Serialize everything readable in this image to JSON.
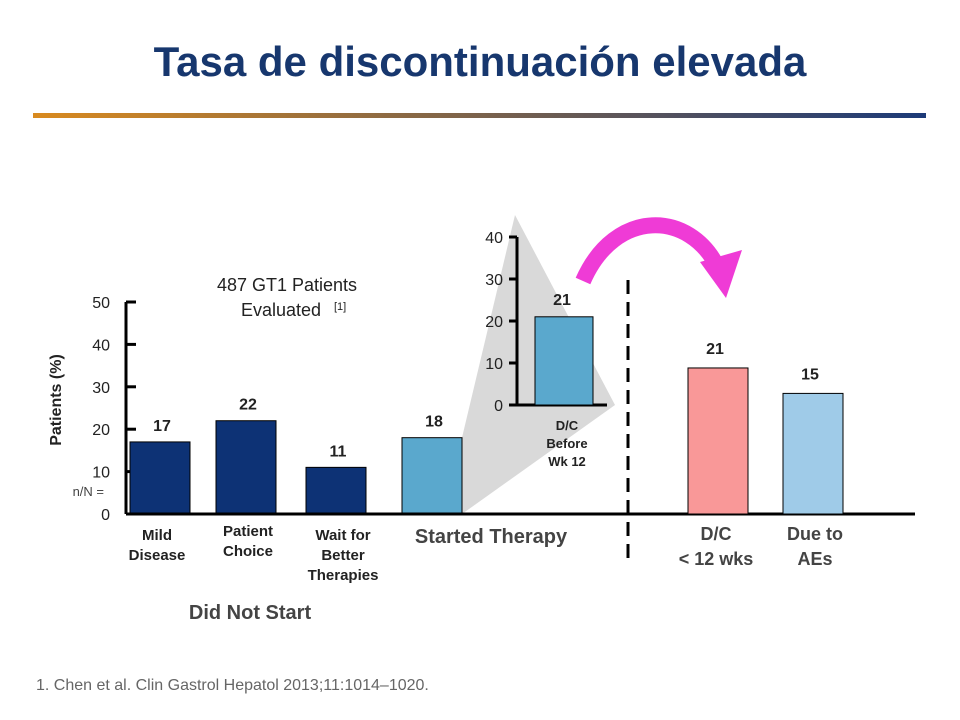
{
  "title": "Tasa de discontinuación elevada",
  "colors": {
    "title": "#17376e",
    "rule_start": "#d98a1f",
    "rule_end": "#1c3a78",
    "dark_blue": "#0d3275",
    "medium_blue": "#5aa8cd",
    "pink": "#f99898",
    "light_blue": "#9fcbe8",
    "arrow": "#ef3bd6",
    "zoom": "#d9d9d9"
  },
  "chart_data": [
    {
      "type": "bar",
      "ylabel": "Patients (%)",
      "ylim": [
        0,
        50
      ],
      "yticks": [
        "0",
        "10",
        "20",
        "30",
        "40",
        "50"
      ],
      "n_label": "n/N =",
      "annotation_line1": "487 GT1 Patients",
      "annotation_line2": "Evaluated",
      "annotation_ref": "[1]",
      "series": [
        {
          "categories": [
            [
              "Mild",
              "Disease"
            ],
            [
              "Patient",
              "Choice"
            ],
            [
              "Wait for",
              "Better",
              "Therapies"
            ],
            [
              "Started Therapy"
            ]
          ],
          "values": [
            17,
            22,
            11,
            18
          ],
          "value_labels": [
            "17",
            "22",
            "11",
            "18"
          ]
        }
      ],
      "group_label": "Did Not Start"
    },
    {
      "type": "bar",
      "ylim": [
        0,
        40
      ],
      "yticks": [
        "0",
        "10",
        "20",
        "30",
        "40"
      ],
      "categories": [
        [
          "D/C",
          "Before",
          "Wk 12"
        ]
      ],
      "values": [
        21
      ],
      "value_labels": [
        "21"
      ]
    },
    {
      "type": "bar",
      "categories": [
        [
          "D/C",
          "< 12 wks"
        ],
        [
          "Due to",
          "AEs"
        ]
      ],
      "values": [
        21,
        15
      ],
      "value_labels": [
        "21",
        "15"
      ]
    }
  ],
  "footnote": "1. Chen et al. Clin Gastrol Hepatol 2013;11:1014–1020."
}
